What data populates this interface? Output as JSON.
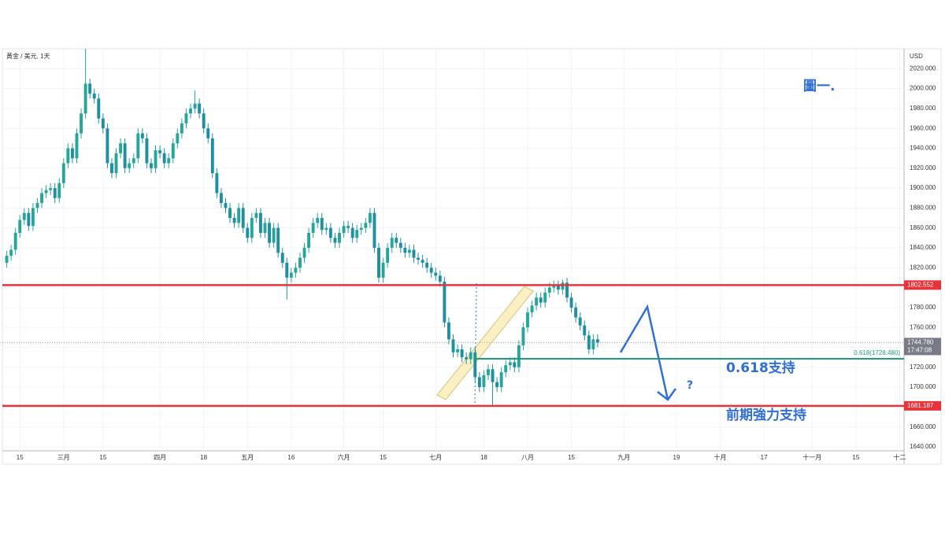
{
  "chart_data": {
    "type": "candlestick",
    "title": "黃金 / 美元, 1天",
    "currency": "USD",
    "up_color": "#26a69a",
    "down_color": "#1e8fa0",
    "open": [
      1825,
      1832,
      1838,
      1855,
      1868,
      1875,
      1862,
      1880,
      1885,
      1895,
      1898,
      1900,
      1890,
      1905,
      1925,
      1940,
      1930,
      1955,
      1975,
      2005,
      1995,
      1990,
      1970,
      1960,
      1925,
      1915,
      1935,
      1945,
      1920,
      1925,
      1930,
      1955,
      1950,
      1925,
      1920,
      1938,
      1935,
      1925,
      1930,
      1945,
      1955,
      1965,
      1975,
      1980,
      1985,
      1975,
      1960,
      1950,
      1915,
      1895,
      1885,
      1880,
      1870,
      1865,
      1880,
      1860,
      1850,
      1870,
      1875,
      1855,
      1865,
      1845,
      1860,
      1835,
      1825,
      1810,
      1815,
      1820,
      1830,
      1840,
      1855,
      1865,
      1870,
      1858,
      1860,
      1850,
      1845,
      1855,
      1862,
      1860,
      1850,
      1858,
      1860,
      1865,
      1875,
      1840,
      1810,
      1825,
      1840,
      1850,
      1845,
      1840,
      1835,
      1838,
      1830,
      1828,
      1825,
      1820,
      1815,
      1812,
      1806,
      1765,
      1748,
      1735,
      1738,
      1730,
      1728,
      1735,
      1710,
      1700,
      1712,
      1718,
      1705,
      1700,
      1715,
      1722,
      1725,
      1720,
      1742,
      1760,
      1775,
      1782,
      1790,
      1785,
      1795,
      1800,
      1802,
      1798,
      1805,
      1790,
      1780,
      1770,
      1762,
      1752,
      1738,
      1748
    ],
    "high": [
      1837,
      1843,
      1860,
      1873,
      1880,
      1880,
      1885,
      1890,
      1900,
      1903,
      1905,
      1905,
      1910,
      1930,
      1945,
      1945,
      1960,
      1980,
      2040,
      2010,
      2000,
      1995,
      1975,
      1965,
      1930,
      1940,
      1950,
      1950,
      1930,
      1935,
      1960,
      1960,
      1955,
      1930,
      1943,
      1943,
      1940,
      1935,
      1950,
      1960,
      1970,
      1980,
      1985,
      1998,
      1990,
      1980,
      1965,
      1955,
      1920,
      1900,
      1890,
      1885,
      1875,
      1885,
      1885,
      1865,
      1875,
      1880,
      1880,
      1870,
      1870,
      1865,
      1865,
      1840,
      1830,
      1820,
      1825,
      1835,
      1845,
      1860,
      1870,
      1875,
      1875,
      1865,
      1865,
      1855,
      1860,
      1867,
      1867,
      1865,
      1863,
      1865,
      1870,
      1880,
      1880,
      1845,
      1830,
      1845,
      1855,
      1855,
      1850,
      1845,
      1843,
      1843,
      1835,
      1833,
      1830,
      1825,
      1820,
      1817,
      1811,
      1770,
      1753,
      1743,
      1743,
      1735,
      1740,
      1740,
      1715,
      1717,
      1723,
      1723,
      1710,
      1720,
      1727,
      1730,
      1730,
      1747,
      1765,
      1780,
      1787,
      1795,
      1795,
      1800,
      1805,
      1807,
      1807,
      1808,
      1810,
      1795,
      1785,
      1775,
      1767,
      1757,
      1753,
      1753
    ],
    "low": [
      1820,
      1827,
      1833,
      1850,
      1863,
      1857,
      1857,
      1875,
      1880,
      1890,
      1893,
      1885,
      1885,
      1900,
      1920,
      1925,
      1925,
      1950,
      1970,
      1990,
      1985,
      1965,
      1955,
      1920,
      1910,
      1910,
      1930,
      1915,
      1915,
      1920,
      1925,
      1945,
      1920,
      1915,
      1915,
      1930,
      1920,
      1920,
      1925,
      1940,
      1950,
      1960,
      1970,
      1975,
      1970,
      1955,
      1945,
      1910,
      1890,
      1880,
      1875,
      1865,
      1860,
      1860,
      1855,
      1845,
      1845,
      1865,
      1850,
      1850,
      1840,
      1840,
      1830,
      1820,
      1788,
      1805,
      1810,
      1815,
      1825,
      1835,
      1850,
      1860,
      1853,
      1853,
      1845,
      1840,
      1840,
      1850,
      1855,
      1845,
      1845,
      1853,
      1855,
      1860,
      1835,
      1805,
      1805,
      1820,
      1835,
      1840,
      1835,
      1830,
      1830,
      1825,
      1823,
      1820,
      1815,
      1810,
      1807,
      1801,
      1760,
      1743,
      1730,
      1730,
      1725,
      1723,
      1723,
      1705,
      1695,
      1695,
      1707,
      1682,
      1695,
      1695,
      1710,
      1717,
      1715,
      1715,
      1737,
      1755,
      1770,
      1777,
      1780,
      1780,
      1790,
      1795,
      1793,
      1793,
      1785,
      1775,
      1765,
      1757,
      1747,
      1733,
      1733,
      1740
    ],
    "close": [
      1832,
      1838,
      1855,
      1868,
      1875,
      1862,
      1880,
      1885,
      1895,
      1898,
      1900,
      1890,
      1905,
      1925,
      1940,
      1930,
      1955,
      1975,
      2005,
      1995,
      1990,
      1970,
      1960,
      1925,
      1915,
      1935,
      1945,
      1920,
      1925,
      1930,
      1955,
      1950,
      1925,
      1920,
      1938,
      1935,
      1925,
      1930,
      1945,
      1955,
      1965,
      1975,
      1980,
      1985,
      1975,
      1960,
      1950,
      1915,
      1895,
      1885,
      1880,
      1870,
      1865,
      1880,
      1860,
      1850,
      1870,
      1875,
      1855,
      1865,
      1845,
      1860,
      1835,
      1825,
      1810,
      1815,
      1820,
      1830,
      1840,
      1855,
      1865,
      1870,
      1858,
      1860,
      1850,
      1845,
      1855,
      1862,
      1860,
      1850,
      1858,
      1860,
      1865,
      1875,
      1840,
      1810,
      1825,
      1840,
      1850,
      1845,
      1840,
      1835,
      1838,
      1830,
      1828,
      1825,
      1820,
      1815,
      1812,
      1806,
      1765,
      1748,
      1735,
      1738,
      1730,
      1728,
      1735,
      1710,
      1700,
      1712,
      1718,
      1705,
      1700,
      1715,
      1722,
      1725,
      1720,
      1742,
      1760,
      1775,
      1782,
      1790,
      1785,
      1795,
      1800,
      1802,
      1798,
      1805,
      1790,
      1780,
      1770,
      1762,
      1752,
      1738,
      1748,
      1744.78
    ],
    "xlim": [
      0,
      206
    ],
    "xticks": [
      {
        "value": 4,
        "label": "15"
      },
      {
        "value": 14,
        "label": "三月"
      },
      {
        "value": 23,
        "label": "15"
      },
      {
        "value": 36,
        "label": "四月"
      },
      {
        "value": 46,
        "label": "18"
      },
      {
        "value": 56,
        "label": "五月"
      },
      {
        "value": 66,
        "label": "16"
      },
      {
        "value": 78,
        "label": "六月"
      },
      {
        "value": 87,
        "label": "15"
      },
      {
        "value": 99,
        "label": "七月"
      },
      {
        "value": 110,
        "label": "18"
      },
      {
        "value": 120,
        "label": "八月"
      },
      {
        "value": 130,
        "label": "15"
      },
      {
        "value": 142,
        "label": "九月"
      },
      {
        "value": 154,
        "label": "19"
      },
      {
        "value": 164,
        "label": "十月"
      },
      {
        "value": 174,
        "label": "17"
      },
      {
        "value": 185,
        "label": "十一月"
      },
      {
        "value": 195,
        "label": "15"
      },
      {
        "value": 205,
        "label": "十二"
      }
    ],
    "ylim": [
      1636,
      2040
    ],
    "yticks": [
      {
        "value": 1640,
        "label": "1640.000"
      },
      {
        "value": 1660,
        "label": "1660.000"
      },
      {
        "value": 1680,
        "label": "1680.000"
      },
      {
        "value": 1700,
        "label": "1700.000"
      },
      {
        "value": 1720,
        "label": "1720.000"
      },
      {
        "value": 1740,
        "label": "1740.000"
      },
      {
        "value": 1760,
        "label": "1760.000"
      },
      {
        "value": 1780,
        "label": "1780.000"
      },
      {
        "value": 1800,
        "label": "1800.000"
      },
      {
        "value": 1820,
        "label": "1820.000"
      },
      {
        "value": 1840,
        "label": "1840.000"
      },
      {
        "value": 1860,
        "label": "1860.000"
      },
      {
        "value": 1880,
        "label": "1880.000"
      },
      {
        "value": 1900,
        "label": "1900.000"
      },
      {
        "value": 1920,
        "label": "1920.000"
      },
      {
        "value": 1940,
        "label": "1940.000"
      },
      {
        "value": 1960,
        "label": "1960.000"
      },
      {
        "value": 1980,
        "label": "1980.000"
      },
      {
        "value": 2000,
        "label": "2000.000"
      },
      {
        "value": 2020,
        "label": "2020.000"
      }
    ],
    "grid": true,
    "levels": [
      {
        "value": 1802.552,
        "label": "1802.552",
        "color": "#e8333b"
      },
      {
        "value": 1681.187,
        "label": "1681.187",
        "color": "#e8333b"
      }
    ],
    "fib": {
      "value": 1728.48,
      "label": "0.618(1728.480)",
      "color": "#1e9c7f"
    },
    "last_price": {
      "value": 1744.78,
      "label": "1744.780",
      "countdown": "17:47:08"
    },
    "annotations": {
      "support_618": "0.618支持",
      "prior_support": "前期強力支持",
      "figure": "圖一.",
      "question": "?"
    }
  }
}
